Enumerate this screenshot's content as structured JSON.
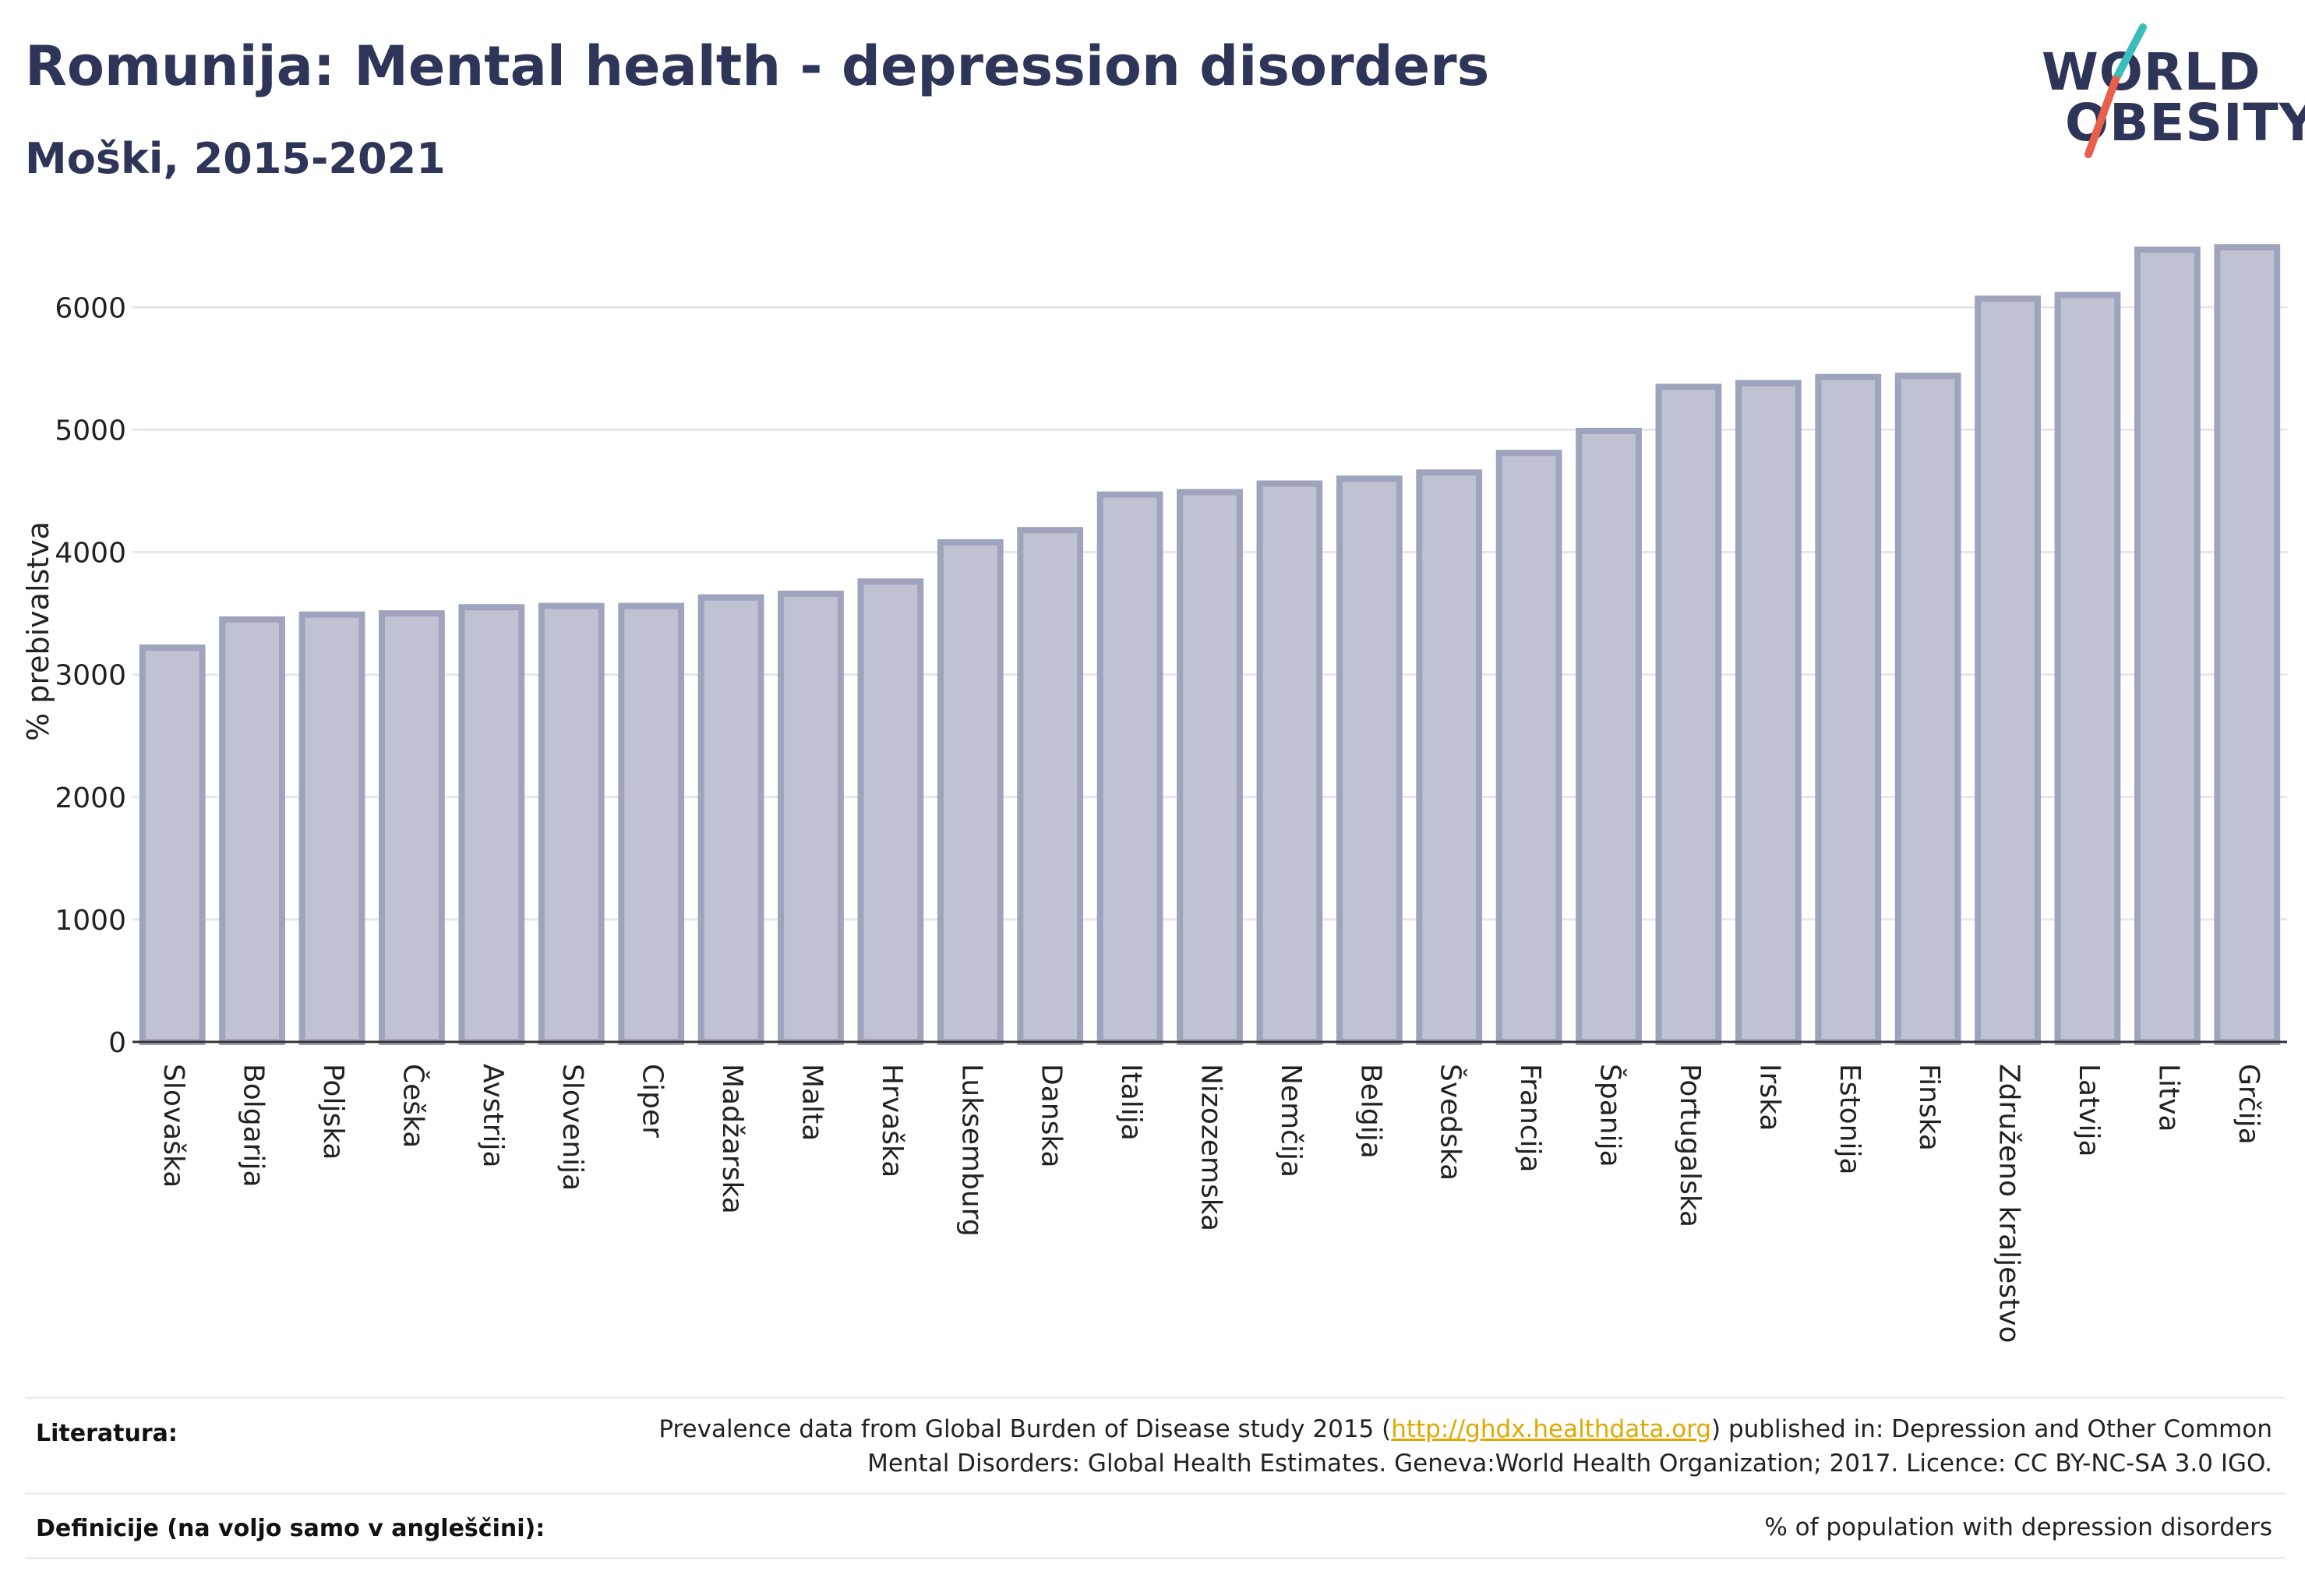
{
  "header": {
    "title": "Romunija: Mental health - depression disorders",
    "subtitle": "Moški, 2015-2021"
  },
  "logo": {
    "line1": "WORLD",
    "line2": "OBESITY",
    "accent_teal": "#3bbdbe",
    "accent_red": "#e8604c"
  },
  "chart_data": {
    "type": "bar",
    "ylabel": "% prebivalstva",
    "ylim": [
      0,
      6600
    ],
    "yticks": [
      0,
      1000,
      2000,
      3000,
      4000,
      5000,
      6000
    ],
    "grid": true,
    "bar_fill": "#bfc2d1",
    "bar_stroke": "#9fa3bd",
    "categories": [
      "Slovaška",
      "Bolgarija",
      "Poljska",
      "Češka",
      "Avstrija",
      "Slovenija",
      "Ciper",
      "Madžarska",
      "Malta",
      "Hrvaška",
      "Luksemburg",
      "Danska",
      "Italija",
      "Nizozemska",
      "Nemčija",
      "Belgija",
      "Švedska",
      "Francija",
      "Španija",
      "Portugalska",
      "Irska",
      "Estonija",
      "Finska",
      "Združeno kraljestvo",
      "Latvija",
      "Litva",
      "Grčija"
    ],
    "values": [
      3220,
      3450,
      3490,
      3500,
      3550,
      3560,
      3560,
      3630,
      3660,
      3760,
      4080,
      4180,
      4470,
      4490,
      4560,
      4600,
      4650,
      4810,
      4990,
      5350,
      5380,
      5430,
      5440,
      6070,
      6100,
      6470,
      6490
    ]
  },
  "footer": {
    "literature_label": "Literatura:",
    "literature_text_1a": "Prevalence data from Global Burden of Disease study 2015 (",
    "literature_link": "http://ghdx.healthdata.org",
    "literature_text_1b": ") published in: Depression and Other Common",
    "literature_text_2": "Mental Disorders: Global Health Estimates. Geneva:World Health Organization; 2017. Licence: CC BY-NC-SA 3.0 IGO.",
    "definitions_label": "Definicije (na voljo samo v angleščini):",
    "definitions_text": "% of population with depression disorders"
  }
}
